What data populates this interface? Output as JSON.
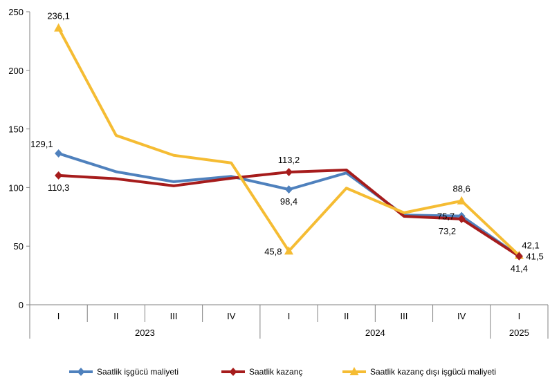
{
  "chart_data": {
    "type": "line",
    "title": "",
    "xlabel": "",
    "ylabel": "",
    "ylim": [
      0,
      250
    ],
    "yticks": [
      0,
      50,
      100,
      150,
      200,
      250
    ],
    "grid": false,
    "legend_position": "bottom",
    "categories": [
      "I",
      "II",
      "III",
      "IV",
      "I",
      "II",
      "III",
      "IV",
      "I"
    ],
    "year_groups": [
      {
        "label": "2023",
        "start": 0,
        "end": 3
      },
      {
        "label": "2024",
        "start": 4,
        "end": 7
      },
      {
        "label": "2025",
        "start": 8,
        "end": 8
      }
    ],
    "series": [
      {
        "name": "Saatlik işgücü maliyeti",
        "color": "#4F81BD",
        "marker": "diamond",
        "values": [
          129.1,
          113.5,
          105.0,
          109.5,
          98.4,
          112.5,
          76.5,
          75.7,
          41.5
        ]
      },
      {
        "name": "Saatlik kazanç",
        "color": "#A61C1C",
        "marker": "diamond",
        "values": [
          110.3,
          107.5,
          101.5,
          108.0,
          113.2,
          115.0,
          75.5,
          73.2,
          41.4
        ]
      },
      {
        "name": "Saatlik kazanç dışı işgücü maliyeti",
        "color": "#F5BC33",
        "marker": "triangle",
        "values": [
          236.1,
          144.5,
          127.5,
          121.0,
          45.8,
          99.5,
          78.5,
          88.6,
          42.1
        ]
      }
    ],
    "data_labels": [
      {
        "series": 2,
        "index": 0,
        "text": "236,1",
        "pos": "above"
      },
      {
        "series": 0,
        "index": 0,
        "text": "129,1",
        "pos": "above-left"
      },
      {
        "series": 1,
        "index": 0,
        "text": "110,3",
        "pos": "below"
      },
      {
        "series": 1,
        "index": 4,
        "text": "113,2",
        "pos": "above"
      },
      {
        "series": 0,
        "index": 4,
        "text": "98,4",
        "pos": "below-right"
      },
      {
        "series": 2,
        "index": 4,
        "text": "45,8",
        "pos": "left"
      },
      {
        "series": 2,
        "index": 7,
        "text": "88,6",
        "pos": "above"
      },
      {
        "series": 0,
        "index": 7,
        "text": "75,7",
        "pos": "left"
      },
      {
        "series": 1,
        "index": 7,
        "text": "73,2",
        "pos": "below-left"
      },
      {
        "series": 2,
        "index": 8,
        "text": "42,1",
        "pos": "above-right"
      },
      {
        "series": 0,
        "index": 8,
        "text": "41,5",
        "pos": "right"
      },
      {
        "series": 1,
        "index": 8,
        "text": "41,4",
        "pos": "below"
      }
    ]
  }
}
